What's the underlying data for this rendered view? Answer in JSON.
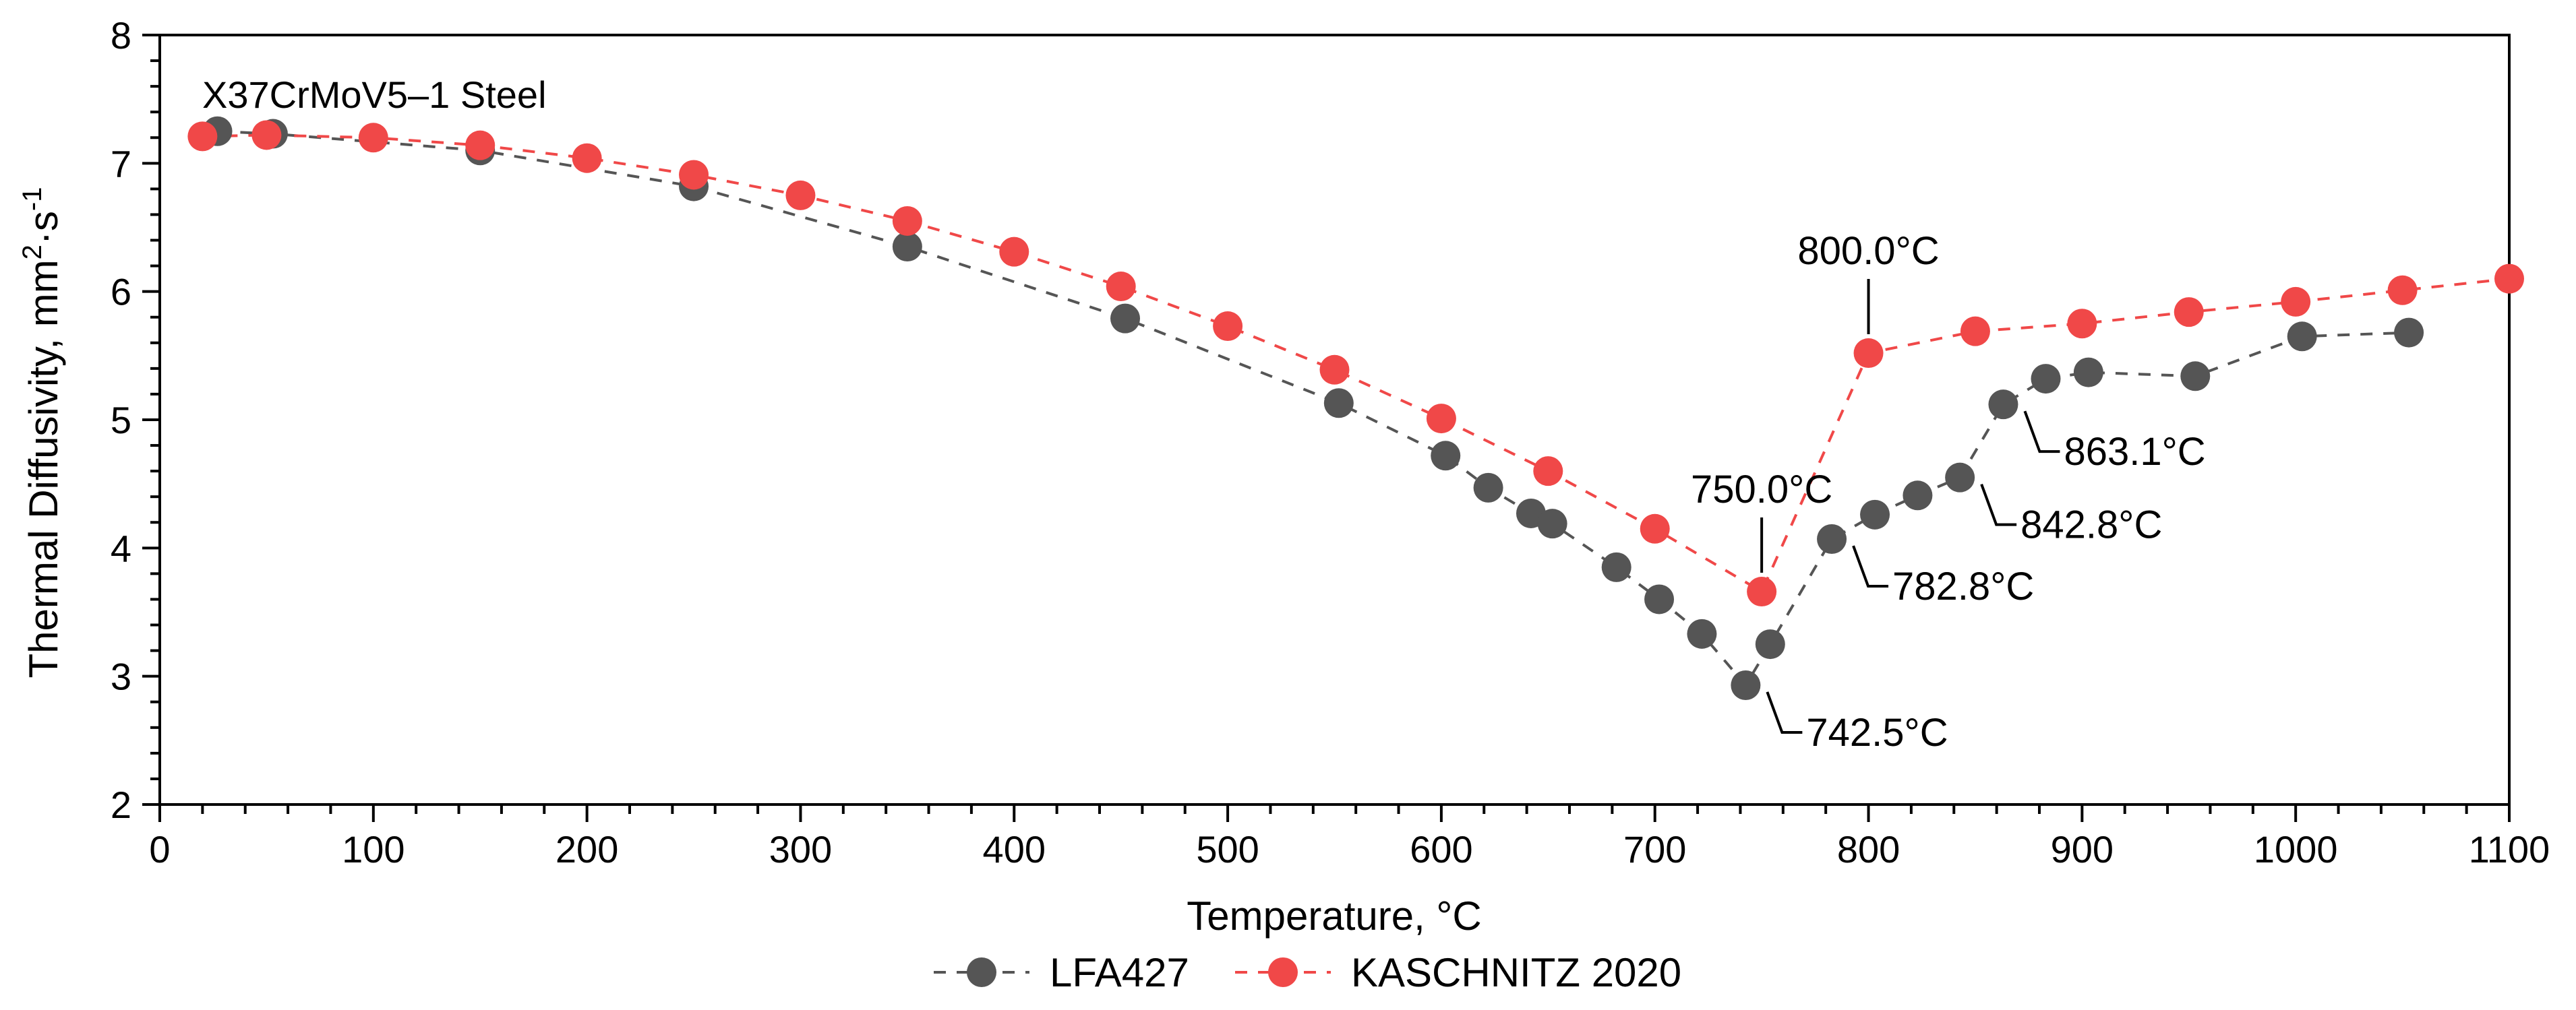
{
  "chart_data": {
    "type": "line",
    "title": "X37CrMoV5–1 Steel",
    "xlabel": "Temperature, °C",
    "ylabel": "Thermal Diffusivity, mm",
    "ylabel_sup1": "2",
    "ylabel_mid": "·s",
    "ylabel_sup2": "-1",
    "xlim": [
      0,
      1100
    ],
    "ylim": [
      2,
      8
    ],
    "xticks": [
      0,
      100,
      200,
      300,
      400,
      500,
      600,
      700,
      800,
      900,
      1000,
      1100
    ],
    "yticks": [
      2,
      3,
      4,
      5,
      6,
      7,
      8
    ],
    "x_minor_step": 20,
    "y_minor_step": 0.2,
    "grid": false,
    "legend_position": "bottom-center",
    "series": [
      {
        "name": "LFA427",
        "color": "#555555",
        "line_style": "dashed",
        "x": [
          27,
          53,
          150,
          250,
          350,
          452,
          552,
          602,
          622,
          642,
          652,
          682,
          702,
          722,
          742.5,
          754,
          782.8,
          803,
          823,
          842.8,
          863.1,
          883,
          903,
          953,
          1003,
          1053
        ],
        "y": [
          7.25,
          7.23,
          7.1,
          6.82,
          6.35,
          5.79,
          5.13,
          4.72,
          4.47,
          4.27,
          4.19,
          3.85,
          3.6,
          3.33,
          2.93,
          3.25,
          4.07,
          4.26,
          4.41,
          4.55,
          5.12,
          5.32,
          5.37,
          5.34,
          5.65,
          5.68
        ]
      },
      {
        "name": "KASCHNITZ 2020",
        "color": "#f04848",
        "line_style": "dashed",
        "x": [
          20,
          50,
          100,
          150,
          200,
          250,
          300,
          350,
          400,
          450,
          500,
          550,
          600,
          650,
          700,
          750,
          800,
          850,
          900,
          950,
          1000,
          1050,
          1100
        ],
        "y": [
          7.21,
          7.22,
          7.2,
          7.14,
          7.04,
          6.91,
          6.75,
          6.55,
          6.31,
          6.04,
          5.73,
          5.39,
          5.01,
          4.6,
          4.15,
          3.66,
          5.52,
          5.69,
          5.75,
          5.84,
          5.92,
          6.01,
          6.1
        ]
      }
    ],
    "annotations": [
      {
        "text": "800.0°C",
        "x": 800.0,
        "y": 5.52,
        "side": "above"
      },
      {
        "text": "750.0°C",
        "x": 750.0,
        "y": 3.66,
        "side": "above"
      },
      {
        "text": "863.1°C",
        "x": 863.1,
        "y": 5.12,
        "side": "right"
      },
      {
        "text": "842.8°C",
        "x": 842.8,
        "y": 4.55,
        "side": "right"
      },
      {
        "text": "782.8°C",
        "x": 782.8,
        "y": 4.07,
        "side": "right"
      },
      {
        "text": "742.5°C",
        "x": 742.5,
        "y": 2.93,
        "side": "right"
      }
    ]
  }
}
